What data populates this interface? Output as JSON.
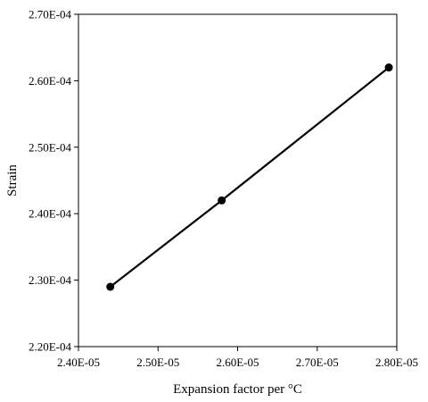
{
  "chart_data": {
    "type": "scatter",
    "title": "",
    "xlabel": "Expansion factor per °C",
    "ylabel": "Strain",
    "xlim": [
      2.4e-05,
      2.8e-05
    ],
    "ylim": [
      0.00022,
      0.00027
    ],
    "x_ticks": [
      {
        "value": 2.4e-05,
        "label": "2.40E-05"
      },
      {
        "value": 2.5e-05,
        "label": "2.50E-05"
      },
      {
        "value": 2.6e-05,
        "label": "2.60E-05"
      },
      {
        "value": 2.7e-05,
        "label": "2.70E-05"
      },
      {
        "value": 2.8e-05,
        "label": "2.80E-05"
      }
    ],
    "y_ticks": [
      {
        "value": 0.00022,
        "label": "2.20E-04"
      },
      {
        "value": 0.00023,
        "label": "2.30E-04"
      },
      {
        "value": 0.00024,
        "label": "2.40E-04"
      },
      {
        "value": 0.00025,
        "label": "2.50E-04"
      },
      {
        "value": 0.00026,
        "label": "2.60E-04"
      },
      {
        "value": 0.00027,
        "label": "2.70E-04"
      }
    ],
    "series": [
      {
        "x": [
          2.44e-05,
          2.58e-05,
          2.79e-05
        ],
        "y": [
          0.000229,
          0.000242,
          0.000262
        ],
        "color": "#000000",
        "line": true,
        "markers": true
      }
    ],
    "grid": false,
    "legend": "none"
  }
}
